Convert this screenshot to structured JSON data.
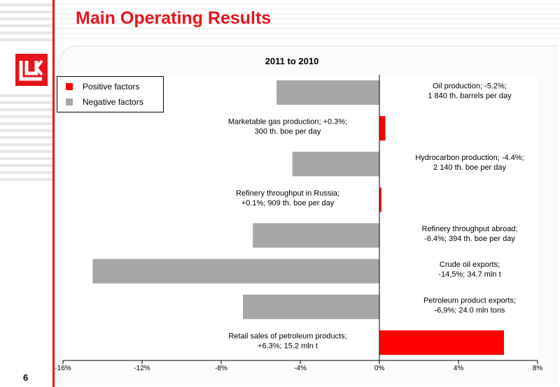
{
  "slide": {
    "title": "Main Operating Results",
    "page_number": "6"
  },
  "logo": {
    "text": "ЛУК"
  },
  "legend": {
    "positive": "Positive factors",
    "negative": "Negative factors"
  },
  "colors": {
    "positive": "#ff0000",
    "negative": "#a6a6a6",
    "accent": "#e8141c"
  },
  "chart_data": {
    "type": "bar",
    "orientation": "horizontal",
    "title": "2011 to 2010",
    "xlim": [
      -16,
      8
    ],
    "x_ticks": [
      "-16%",
      "-12%",
      "-8%",
      "-4%",
      "0%",
      "4%",
      "8%"
    ],
    "legend_position": "top-left",
    "series": [
      {
        "name": "Positive factors",
        "color": "#ff0000"
      },
      {
        "name": "Negative factors",
        "color": "#a6a6a6"
      }
    ],
    "bars": [
      {
        "label": [
          "Oil production; -5.2%;",
          "1 840 th. barrels per day"
        ],
        "value": -5.2,
        "series": "Negative factors"
      },
      {
        "label": [
          "Marketable gas production; +0.3%;",
          "300 th. boe per day"
        ],
        "value": 0.3,
        "series": "Positive factors"
      },
      {
        "label": [
          "Hydrocarbon production; -4.4%;",
          "2 140 th. boe per day"
        ],
        "value": -4.4,
        "series": "Negative factors"
      },
      {
        "label": [
          "Refinery throughput in Russia;",
          "+0.1%; 909 th. boe per day"
        ],
        "value": 0.1,
        "series": "Positive factors"
      },
      {
        "label": [
          "Refinery throughput abroad;",
          "-6.4%; 394 th. boe per day"
        ],
        "value": -6.4,
        "series": "Negative factors"
      },
      {
        "label": [
          "Crude oil exports;",
          "-14,5%; 34.7 mln t"
        ],
        "value": -14.5,
        "series": "Negative factors"
      },
      {
        "label": [
          "Petroleum product exports;",
          "-6,9%; 24.0 mln tons"
        ],
        "value": -6.9,
        "series": "Negative factors"
      },
      {
        "label": [
          "Retail sales of petroleum products;",
          "+6.3%;  15.2 mln t"
        ],
        "value": 6.3,
        "series": "Positive factors"
      }
    ]
  }
}
